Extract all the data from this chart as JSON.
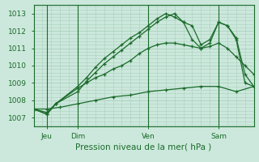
{
  "title": "",
  "xlabel": "Pression niveau de la mer( hPa )",
  "ylabel": "",
  "bg_color": "#cce8dc",
  "line_color": "#1a6b2a",
  "grid_color": "#aacfbe",
  "ylim": [
    1006.5,
    1013.5
  ],
  "xlim": [
    0,
    50
  ],
  "xtick_positions": [
    3,
    10,
    26,
    42
  ],
  "xtick_labels": [
    "Jeu",
    "Dim",
    "Ven",
    "Sam"
  ],
  "ytick_positions": [
    1007,
    1008,
    1009,
    1010,
    1011,
    1012,
    1013
  ],
  "vlines": [
    3,
    10,
    26,
    42
  ],
  "series": [
    {
      "x": [
        0,
        3,
        6,
        10,
        14,
        18,
        22,
        26,
        30,
        34,
        38,
        42,
        46,
        50
      ],
      "y": [
        1007.5,
        1007.5,
        1007.6,
        1007.8,
        1008.0,
        1008.2,
        1008.3,
        1008.5,
        1008.6,
        1008.7,
        1008.8,
        1008.8,
        1008.5,
        1008.8
      ],
      "marker": "+"
    },
    {
      "x": [
        0,
        3,
        5,
        10,
        12,
        14,
        16,
        18,
        20,
        22,
        24,
        26,
        28,
        30,
        32,
        34,
        36,
        38,
        40,
        42,
        44,
        46,
        48,
        50
      ],
      "y": [
        1007.5,
        1007.3,
        1007.8,
        1008.7,
        1009.0,
        1009.3,
        1009.5,
        1009.8,
        1010.0,
        1010.3,
        1010.7,
        1011.0,
        1011.2,
        1011.3,
        1011.3,
        1011.2,
        1011.1,
        1011.0,
        1011.1,
        1011.3,
        1011.0,
        1010.5,
        1010.0,
        1009.5
      ],
      "marker": "+"
    },
    {
      "x": [
        0,
        3,
        5,
        10,
        12,
        14,
        16,
        18,
        20,
        22,
        24,
        26,
        28,
        30,
        32,
        34,
        36,
        38,
        40,
        42,
        44,
        46,
        48,
        50
      ],
      "y": [
        1007.5,
        1007.2,
        1007.8,
        1008.5,
        1009.1,
        1009.6,
        1010.1,
        1010.5,
        1010.9,
        1011.3,
        1011.7,
        1012.1,
        1012.5,
        1012.8,
        1013.0,
        1012.5,
        1011.5,
        1011.0,
        1011.3,
        1012.5,
        1012.3,
        1011.6,
        1009.5,
        1008.8
      ],
      "marker": "+"
    },
    {
      "x": [
        0,
        3,
        5,
        10,
        12,
        14,
        16,
        18,
        20,
        22,
        24,
        26,
        28,
        30,
        32,
        34,
        36,
        38,
        40,
        42,
        44,
        46,
        48,
        50
      ],
      "y": [
        1007.5,
        1007.2,
        1007.8,
        1008.8,
        1009.3,
        1009.9,
        1010.4,
        1010.8,
        1011.2,
        1011.6,
        1011.9,
        1012.3,
        1012.7,
        1013.0,
        1012.8,
        1012.5,
        1012.3,
        1011.2,
        1011.5,
        1012.5,
        1012.3,
        1011.5,
        1009.0,
        1008.8
      ],
      "marker": "+"
    }
  ]
}
